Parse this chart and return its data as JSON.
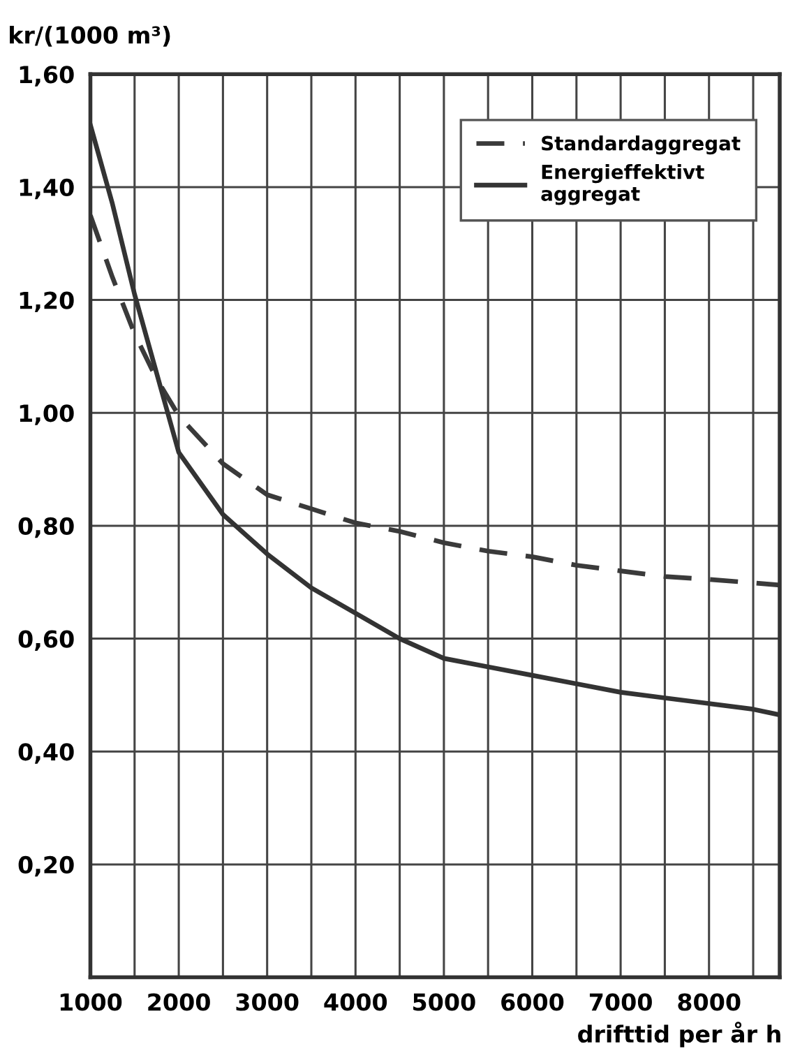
{
  "chart_data": {
    "type": "line",
    "ylabel": "kr/(1000 m³)",
    "xlabel": "drifttid per år h",
    "series": [
      {
        "name": "Standardaggregat",
        "color": "#3a3a3a",
        "line_style": "dashed",
        "x": [
          1000,
          1250,
          1500,
          1750,
          2000,
          2500,
          3000,
          3500,
          4000,
          4500,
          5000,
          5500,
          6000,
          6500,
          7000,
          7500,
          8000,
          8800
        ],
        "values": [
          1.35,
          1.24,
          1.14,
          1.06,
          0.995,
          0.91,
          0.855,
          0.83,
          0.805,
          0.79,
          0.77,
          0.755,
          0.745,
          0.73,
          0.72,
          0.71,
          0.705,
          0.695
        ]
      },
      {
        "name": "Energieffektivt aggregat",
        "color": "#333333",
        "line_style": "solid",
        "x": [
          1000,
          1250,
          1500,
          1750,
          2000,
          2500,
          3000,
          3500,
          4000,
          4500,
          5000,
          5500,
          6000,
          6500,
          7000,
          7500,
          8000,
          8500,
          8800
        ],
        "values": [
          1.51,
          1.37,
          1.21,
          1.07,
          0.93,
          0.82,
          0.75,
          0.69,
          0.645,
          0.6,
          0.565,
          0.55,
          0.535,
          0.52,
          0.505,
          0.495,
          0.485,
          0.475,
          0.465
        ]
      }
    ],
    "xlim": [
      1000,
      8800
    ],
    "ylim": [
      0,
      1.6
    ],
    "xticks": [
      1000,
      {
        "value": 1500,
        "label": null
      },
      2000,
      {
        "value": 2500,
        "label": null
      },
      3000,
      {
        "value": 3500,
        "label": null
      },
      4000,
      {
        "value": 4500,
        "label": null
      },
      5000,
      {
        "value": 5500,
        "label": null
      },
      6000,
      {
        "value": 6500,
        "label": null
      },
      7000,
      {
        "value": 7500,
        "label": null
      },
      8000,
      {
        "value": 8500,
        "label": null
      }
    ],
    "yticks": [
      {
        "value": 0,
        "label": null
      },
      {
        "value": 0.2,
        "label": "0,20"
      },
      {
        "value": 0.4,
        "label": "0,40"
      },
      {
        "value": 0.6,
        "label": "0,60"
      },
      {
        "value": 0.8,
        "label": "0,80"
      },
      {
        "value": 1.0,
        "label": "1,00"
      },
      {
        "value": 1.2,
        "label": "1,20"
      },
      {
        "value": 1.4,
        "label": "1,40"
      },
      {
        "value": 1.6,
        "label": "1,60"
      }
    ],
    "grid": true,
    "legend": "top right",
    "marker": "none"
  }
}
